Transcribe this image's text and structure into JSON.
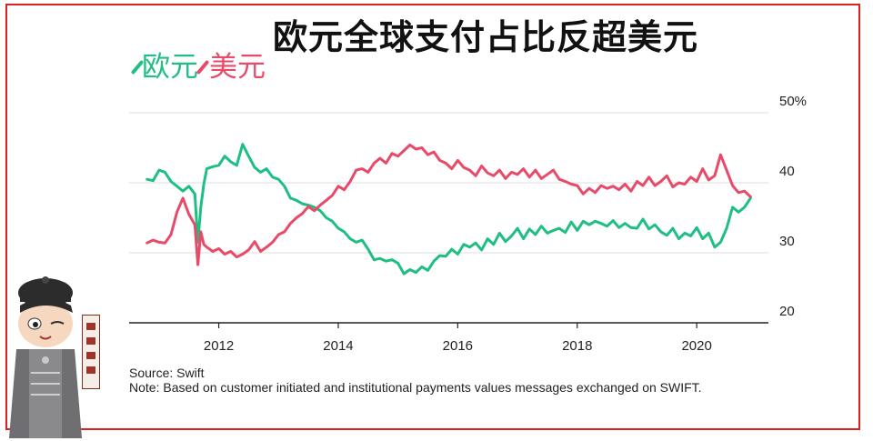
{
  "page": {
    "title": "欧元全球支付占比反超美元",
    "legend_euro": "欧元",
    "legend_usd": "美元",
    "source": "Source: Swift",
    "note": "Note: Based on customer initiated and institutional payments values messages exchanged on SWIFT."
  },
  "colors": {
    "euro": "#1fbf83",
    "usd": "#e84a6a",
    "frame": "#e02020",
    "grid": "#dddddd"
  },
  "chart_data": {
    "type": "line",
    "ylim": [
      20,
      50
    ],
    "yticks": [
      20,
      30,
      40,
      50
    ],
    "ytick_labels": [
      "20",
      "30",
      "40",
      "50%"
    ],
    "xlim": [
      2010.5,
      2021.2
    ],
    "xticks": [
      2012,
      2014,
      2016,
      2018,
      2020
    ],
    "xtick_labels": [
      "2012",
      "2014",
      "2016",
      "2018",
      "2020"
    ],
    "grid": true,
    "legend": "top-left",
    "series": [
      {
        "name": "欧元",
        "color": "#1fbf83",
        "x": [
          2010.8,
          2010.9,
          2011.0,
          2011.1,
          2011.2,
          2011.3,
          2011.4,
          2011.5,
          2011.6,
          2011.65,
          2011.7,
          2011.75,
          2011.8,
          2011.9,
          2012.0,
          2012.1,
          2012.2,
          2012.3,
          2012.4,
          2012.5,
          2012.6,
          2012.7,
          2012.8,
          2012.9,
          2013.0,
          2013.1,
          2013.2,
          2013.3,
          2013.4,
          2013.5,
          2013.6,
          2013.7,
          2013.8,
          2013.9,
          2014.0,
          2014.1,
          2014.2,
          2014.3,
          2014.4,
          2014.5,
          2014.6,
          2014.7,
          2014.8,
          2014.9,
          2015.0,
          2015.1,
          2015.2,
          2015.3,
          2015.4,
          2015.5,
          2015.6,
          2015.7,
          2015.8,
          2015.9,
          2016.0,
          2016.1,
          2016.2,
          2016.3,
          2016.4,
          2016.5,
          2016.6,
          2016.7,
          2016.8,
          2016.9,
          2017.0,
          2017.1,
          2017.2,
          2017.3,
          2017.4,
          2017.5,
          2017.6,
          2017.7,
          2017.8,
          2017.9,
          2018.0,
          2018.1,
          2018.2,
          2018.3,
          2018.4,
          2018.5,
          2018.6,
          2018.7,
          2018.8,
          2018.9,
          2019.0,
          2019.1,
          2019.2,
          2019.3,
          2019.4,
          2019.5,
          2019.6,
          2019.7,
          2019.8,
          2019.9,
          2020.0,
          2020.1,
          2020.2,
          2020.3,
          2020.4,
          2020.5,
          2020.6,
          2020.7,
          2020.8,
          2020.9
        ],
        "y": [
          40.5,
          40.3,
          41.8,
          41.5,
          40.2,
          39.5,
          38.8,
          39.5,
          38.4,
          31.5,
          36.5,
          39.8,
          42.0,
          42.3,
          42.5,
          43.8,
          43.0,
          42.5,
          45.5,
          43.8,
          42.2,
          41.5,
          42.0,
          40.8,
          40.5,
          39.5,
          37.8,
          37.5,
          37.0,
          36.8,
          36.5,
          36.0,
          35.0,
          34.5,
          33.5,
          33.0,
          32.0,
          31.5,
          31.8,
          30.5,
          29.0,
          29.2,
          28.8,
          29.0,
          28.5,
          27.0,
          27.6,
          27.2,
          28.0,
          27.5,
          28.8,
          29.6,
          29.5,
          30.5,
          29.8,
          31.2,
          30.8,
          31.4,
          30.4,
          32.0,
          31.2,
          32.8,
          31.6,
          32.4,
          33.5,
          32.0,
          33.4,
          32.6,
          33.8,
          32.8,
          33.2,
          33.5,
          32.9,
          34.4,
          33.2,
          34.5,
          34.0,
          34.5,
          34.2,
          33.8,
          34.6,
          33.6,
          34.2,
          33.6,
          33.5,
          34.8,
          33.4,
          34.0,
          33.0,
          32.5,
          33.5,
          32.0,
          32.8,
          32.4,
          33.6,
          32.0,
          32.8,
          30.8,
          31.5,
          33.5,
          36.5,
          35.8,
          36.5,
          37.8
        ]
      },
      {
        "name": "美元",
        "color": "#e84a6a",
        "x": [
          2010.8,
          2010.9,
          2011.0,
          2011.1,
          2011.2,
          2011.3,
          2011.4,
          2011.5,
          2011.6,
          2011.65,
          2011.7,
          2011.75,
          2011.8,
          2011.9,
          2012.0,
          2012.1,
          2012.2,
          2012.3,
          2012.4,
          2012.5,
          2012.6,
          2012.7,
          2012.8,
          2012.9,
          2013.0,
          2013.1,
          2013.2,
          2013.3,
          2013.4,
          2013.5,
          2013.6,
          2013.7,
          2013.8,
          2013.9,
          2014.0,
          2014.1,
          2014.2,
          2014.3,
          2014.4,
          2014.5,
          2014.6,
          2014.7,
          2014.8,
          2014.9,
          2015.0,
          2015.1,
          2015.2,
          2015.3,
          2015.4,
          2015.5,
          2015.6,
          2015.7,
          2015.8,
          2015.9,
          2016.0,
          2016.1,
          2016.2,
          2016.3,
          2016.4,
          2016.5,
          2016.6,
          2016.7,
          2016.8,
          2016.9,
          2017.0,
          2017.1,
          2017.2,
          2017.3,
          2017.4,
          2017.5,
          2017.6,
          2017.7,
          2017.8,
          2017.9,
          2018.0,
          2018.1,
          2018.2,
          2018.3,
          2018.4,
          2018.5,
          2018.6,
          2018.7,
          2018.8,
          2018.9,
          2019.0,
          2019.1,
          2019.2,
          2019.3,
          2019.4,
          2019.5,
          2019.6,
          2019.7,
          2019.8,
          2019.9,
          2020.0,
          2020.1,
          2020.2,
          2020.3,
          2020.4,
          2020.5,
          2020.6,
          2020.7,
          2020.8,
          2020.9
        ],
        "y": [
          31.4,
          31.8,
          31.5,
          31.4,
          32.6,
          35.8,
          37.8,
          35.5,
          34.0,
          28.3,
          33.0,
          31.2,
          30.8,
          30.2,
          30.6,
          29.8,
          30.2,
          29.4,
          29.8,
          30.4,
          31.6,
          30.2,
          30.8,
          31.5,
          32.6,
          33.0,
          34.2,
          35.0,
          35.6,
          36.6,
          36.0,
          36.8,
          37.5,
          38.2,
          39.5,
          39.0,
          40.2,
          41.8,
          42.0,
          41.5,
          42.8,
          43.5,
          42.8,
          44.2,
          43.8,
          44.6,
          45.4,
          44.8,
          45.0,
          44.0,
          44.4,
          43.2,
          42.8,
          42.0,
          43.2,
          42.2,
          41.8,
          41.0,
          42.4,
          41.4,
          41.0,
          41.8,
          40.6,
          41.5,
          41.2,
          42.0,
          40.8,
          41.8,
          40.6,
          41.2,
          41.8,
          40.5,
          40.2,
          39.8,
          39.6,
          38.4,
          39.2,
          38.6,
          39.6,
          39.2,
          39.5,
          39.0,
          39.8,
          38.8,
          40.2,
          39.6,
          40.8,
          39.6,
          40.2,
          41.0,
          39.4,
          40.0,
          39.8,
          40.8,
          40.2,
          42.0,
          40.4,
          41.0,
          44.0,
          41.8,
          39.6,
          38.6,
          38.8,
          38.0
        ]
      }
    ]
  }
}
